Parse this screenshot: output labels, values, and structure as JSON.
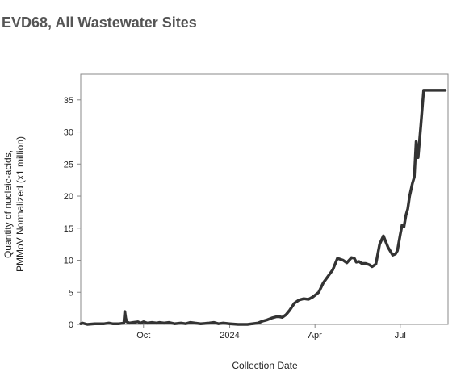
{
  "page": {
    "title": "EVD68, All Wastewater Sites"
  },
  "chart_data": {
    "type": "line",
    "title": "EVD68, All Wastewater Sites",
    "xlabel": "Collection Date",
    "ylabel_line1": "Quantity of nucleic-acids,",
    "ylabel_line2": "PMMoV Normalized (x1 million)",
    "x_domain": [
      "2023-07-26",
      "2024-08-21"
    ],
    "ylim": [
      0,
      39
    ],
    "y_ticks": [
      0,
      5,
      10,
      15,
      20,
      25,
      30,
      35
    ],
    "x_ticks": [
      {
        "date": "2023-10-01",
        "label": "Oct"
      },
      {
        "date": "2024-01-01",
        "label": "2024"
      },
      {
        "date": "2024-04-01",
        "label": "Apr"
      },
      {
        "date": "2024-07-01",
        "label": "Jul"
      }
    ],
    "line_color": "#333333",
    "series": [
      {
        "x": [
          "2023-07-26",
          "2023-07-28",
          "2023-08-02",
          "2023-08-10",
          "2023-08-20",
          "2023-08-25",
          "2023-08-29",
          "2023-09-05",
          "2023-09-10",
          "2023-09-11",
          "2023-09-12",
          "2023-09-13",
          "2023-09-16",
          "2023-09-20",
          "2023-09-25",
          "2023-09-28",
          "2023-10-01",
          "2023-10-05",
          "2023-10-10",
          "2023-10-15",
          "2023-10-18",
          "2023-10-23",
          "2023-10-28",
          "2023-11-03",
          "2023-11-10",
          "2023-11-15",
          "2023-11-20",
          "2023-11-25",
          "2023-12-01",
          "2023-12-10",
          "2023-12-15",
          "2023-12-20",
          "2023-12-25",
          "2024-01-01",
          "2024-01-10",
          "2024-01-20",
          "2024-01-25",
          "2024-01-31",
          "2024-02-05",
          "2024-02-10",
          "2024-02-15",
          "2024-02-20",
          "2024-02-23",
          "2024-02-26",
          "2024-03-01",
          "2024-03-05",
          "2024-03-10",
          "2024-03-15",
          "2024-03-20",
          "2024-03-25",
          "2024-03-30",
          "2024-04-05",
          "2024-04-10",
          "2024-04-15",
          "2024-04-20",
          "2024-04-25",
          "2024-05-01",
          "2024-05-05",
          "2024-05-10",
          "2024-05-13",
          "2024-05-15",
          "2024-05-18",
          "2024-05-21",
          "2024-05-25",
          "2024-05-29",
          "2024-06-01",
          "2024-06-05",
          "2024-06-09",
          "2024-06-13",
          "2024-06-18",
          "2024-06-23",
          "2024-06-26",
          "2024-06-28",
          "2024-07-01",
          "2024-07-03",
          "2024-07-05",
          "2024-07-07",
          "2024-07-09",
          "2024-07-11",
          "2024-07-14",
          "2024-07-16",
          "2024-07-18",
          "2024-07-20",
          "2024-07-23",
          "2024-07-26",
          "2024-07-29",
          "2024-08-01",
          "2024-08-04",
          "2024-08-07",
          "2024-08-10",
          "2024-08-12",
          "2024-08-14",
          "2024-08-15",
          "2024-08-16",
          "2024-08-17",
          "2024-08-18"
        ],
        "values": [
          0.1,
          0.2,
          0.0,
          0.1,
          0.1,
          0.2,
          0.1,
          0.1,
          0.2,
          2.0,
          1.0,
          0.4,
          0.2,
          0.3,
          0.4,
          0.2,
          0.4,
          0.2,
          0.3,
          0.2,
          0.3,
          0.2,
          0.3,
          0.1,
          0.2,
          0.1,
          0.3,
          0.2,
          0.1,
          0.2,
          0.3,
          0.1,
          0.2,
          0.1,
          0.0,
          0.0,
          0.1,
          0.2,
          0.5,
          0.7,
          1.0,
          1.2,
          1.2,
          1.1,
          1.5,
          2.2,
          3.3,
          3.8,
          4.0,
          3.9,
          4.3,
          5.0,
          6.5,
          7.5,
          8.5,
          10.3,
          10.0,
          9.6,
          10.4,
          10.3,
          9.7,
          9.8,
          9.5,
          9.5,
          9.3,
          9.0,
          9.4,
          12.5,
          13.8,
          12.0,
          10.8,
          11.0,
          11.5,
          14.0,
          15.5,
          15.2,
          17.0,
          18.0,
          20.0,
          22.0,
          23.0,
          28.5,
          26.0,
          31.0,
          36.5,
          36.5,
          36.5,
          36.5,
          36.5,
          36.5,
          36.5,
          36.5,
          36.5,
          36.5,
          36.5,
          36.5
        ]
      }
    ]
  }
}
